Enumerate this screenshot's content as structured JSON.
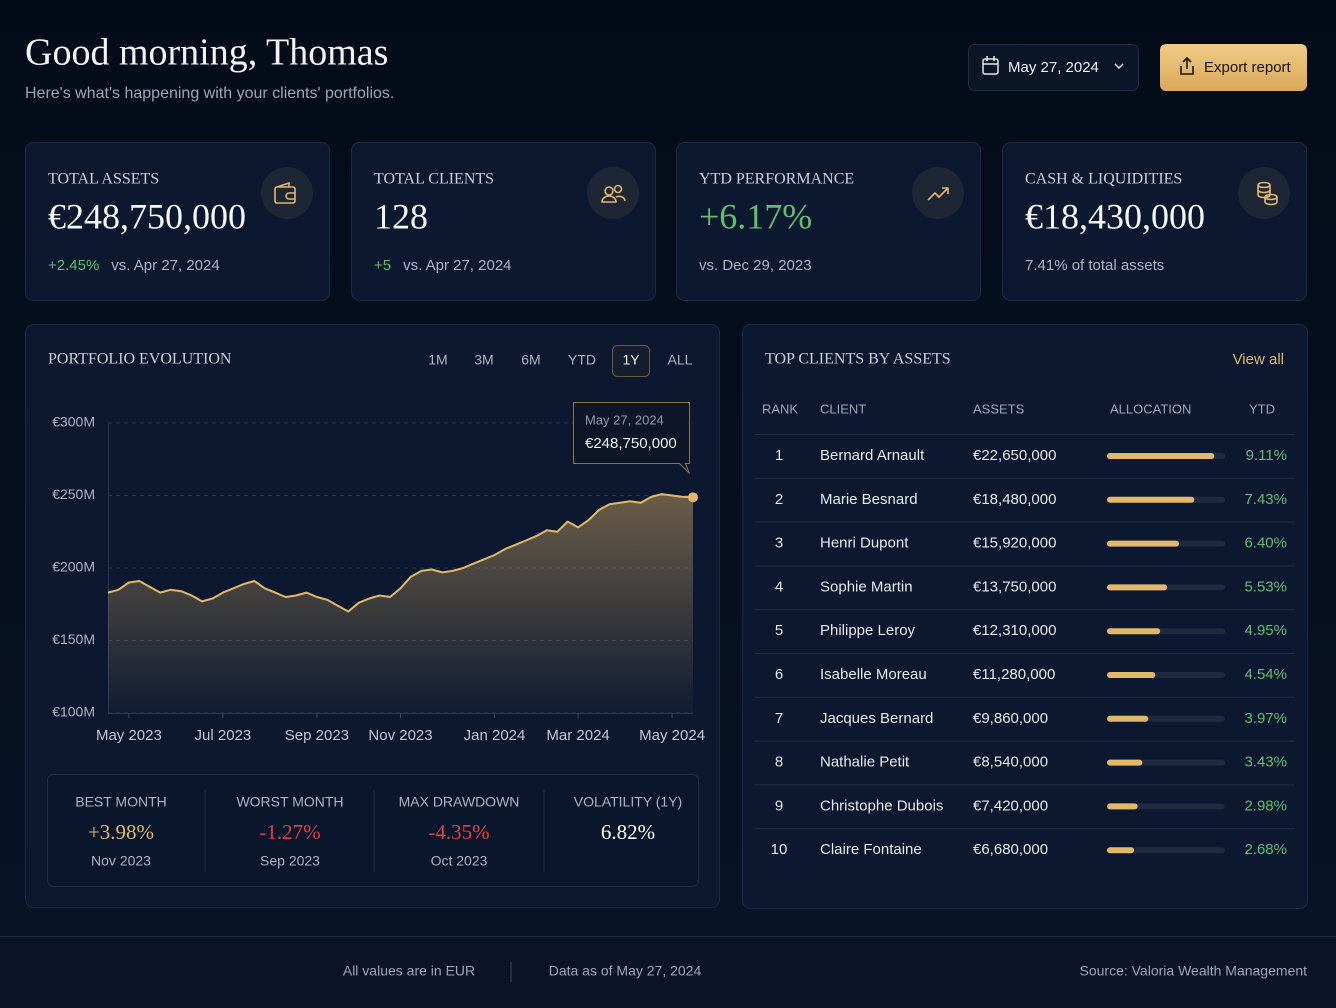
{
  "header": {
    "title": "Good morning, Thomas",
    "subtitle": "Here's what's happening with your clients' portfolios.",
    "date": "May 27, 2024",
    "export": "Export report"
  },
  "kpis": [
    {
      "label": "TOTAL ASSETS",
      "value": "€248,750,000",
      "change": "+2.45%",
      "note": "vs. Apr 27, 2024"
    },
    {
      "label": "TOTAL CLIENTS",
      "value": "128",
      "change": "+5",
      "note": "vs. Apr 27, 2024"
    },
    {
      "label": "YTD PERFORMANCE",
      "value": "+6.17%",
      "value_color": "#5fbf6f",
      "note": "vs. Dec 29, 2023"
    },
    {
      "label": "CASH & LIQUIDITIES",
      "value": "€18,430,000",
      "note": "7.41% of total assets"
    }
  ],
  "chart_data": {
    "type": "line",
    "title": "PORTFOLIO EVOLUTION",
    "ranges": [
      {
        "label": "1M"
      },
      {
        "label": "3M"
      },
      {
        "label": "6M"
      },
      {
        "label": "YTD"
      },
      {
        "label": "1Y",
        "active": true
      },
      {
        "label": "ALL"
      }
    ],
    "categories": [
      null,
      null,
      "May 2023",
      null,
      null,
      null,
      null,
      null,
      null,
      null,
      null,
      "Jul 2023",
      null,
      null,
      null,
      null,
      null,
      null,
      null,
      null,
      "Sep 2023",
      null,
      null,
      null,
      null,
      null,
      null,
      null,
      "Nov 2023",
      null,
      null,
      null,
      null,
      null,
      null,
      null,
      null,
      "Jan 2024",
      null,
      null,
      null,
      null,
      null,
      null,
      null,
      "Mar 2024",
      null,
      null,
      null,
      null,
      null,
      null,
      null,
      null,
      "May 2024",
      null,
      null
    ],
    "values": [
      183,
      185,
      190,
      191,
      187,
      183,
      185,
      184,
      181,
      177,
      179,
      183,
      186,
      189,
      191,
      186,
      183,
      180,
      181,
      183,
      180,
      178,
      174,
      170,
      176,
      179,
      181,
      180,
      186,
      194,
      198,
      199,
      197,
      198,
      200,
      203,
      206,
      209,
      213,
      216,
      219,
      222,
      226,
      225,
      232,
      228,
      233,
      240,
      244,
      245,
      246,
      245,
      249,
      251,
      250,
      249,
      248.75
    ],
    "color": "#e2b86a",
    "ylim": [
      100,
      300
    ],
    "yticks": [
      {
        "value": 100,
        "label": "€100M"
      },
      {
        "value": 150,
        "label": "€150M"
      },
      {
        "value": 200,
        "label": "€200M"
      },
      {
        "value": 250,
        "label": "€250M"
      },
      {
        "value": 300,
        "label": "€300M"
      }
    ],
    "grid": true,
    "annotation": {
      "date": "May 27, 2024",
      "value": "€248,750,000"
    }
  },
  "stats": [
    {
      "label": "BEST MONTH",
      "value": "+3.98%",
      "period": "Nov 2023",
      "color": "#e2b86a"
    },
    {
      "label": "WORST MONTH",
      "value": "-1.27%",
      "period": "Sep 2023",
      "color": "#e5403f"
    },
    {
      "label": "MAX DRAWDOWN",
      "value": "-4.35%",
      "period": "Oct 2023",
      "color": "#e5403f"
    },
    {
      "label": "VOLATILITY (1Y)",
      "value": "6.82%",
      "color": "#ffffff"
    }
  ],
  "table": {
    "title": "TOP CLIENTS BY ASSETS",
    "link": "View all",
    "columns": [
      "RANK",
      "CLIENT",
      "ASSETS",
      "ALLOCATION",
      "YTD"
    ],
    "allocation_lim": [
      0,
      100
    ],
    "rows": [
      {
        "rank": 1,
        "client": "Bernard Arnault",
        "assets": "€22,650,000",
        "allocation": 91,
        "ytd": "9.11%"
      },
      {
        "rank": 2,
        "client": "Marie Besnard",
        "assets": "€18,480,000",
        "allocation": 74,
        "ytd": "7.43%"
      },
      {
        "rank": 3,
        "client": "Henri Dupont",
        "assets": "€15,920,000",
        "allocation": 61,
        "ytd": "6.40%"
      },
      {
        "rank": 4,
        "client": "Sophie Martin",
        "assets": "€13,750,000",
        "allocation": 51,
        "ytd": "5.53%"
      },
      {
        "rank": 5,
        "client": "Philippe Leroy",
        "assets": "€12,310,000",
        "allocation": 45,
        "ytd": "4.95%"
      },
      {
        "rank": 6,
        "client": "Isabelle Moreau",
        "assets": "€11,280,000",
        "allocation": 41,
        "ytd": "4.54%"
      },
      {
        "rank": 7,
        "client": "Jacques Bernard",
        "assets": "€9,860,000",
        "allocation": 35,
        "ytd": "3.97%"
      },
      {
        "rank": 8,
        "client": "Nathalie Petit",
        "assets": "€8,540,000",
        "allocation": 30,
        "ytd": "3.43%"
      },
      {
        "rank": 9,
        "client": "Christophe Dubois",
        "assets": "€7,420,000",
        "allocation": 26,
        "ytd": "2.98%"
      },
      {
        "rank": 10,
        "client": "Claire Fontaine",
        "assets": "€6,680,000",
        "allocation": 23,
        "ytd": "2.68%"
      }
    ]
  },
  "footer": {
    "currency": "All values are in EUR",
    "as_of": "Data as of May 27, 2024",
    "source": "Source: Valoria Wealth Management"
  }
}
